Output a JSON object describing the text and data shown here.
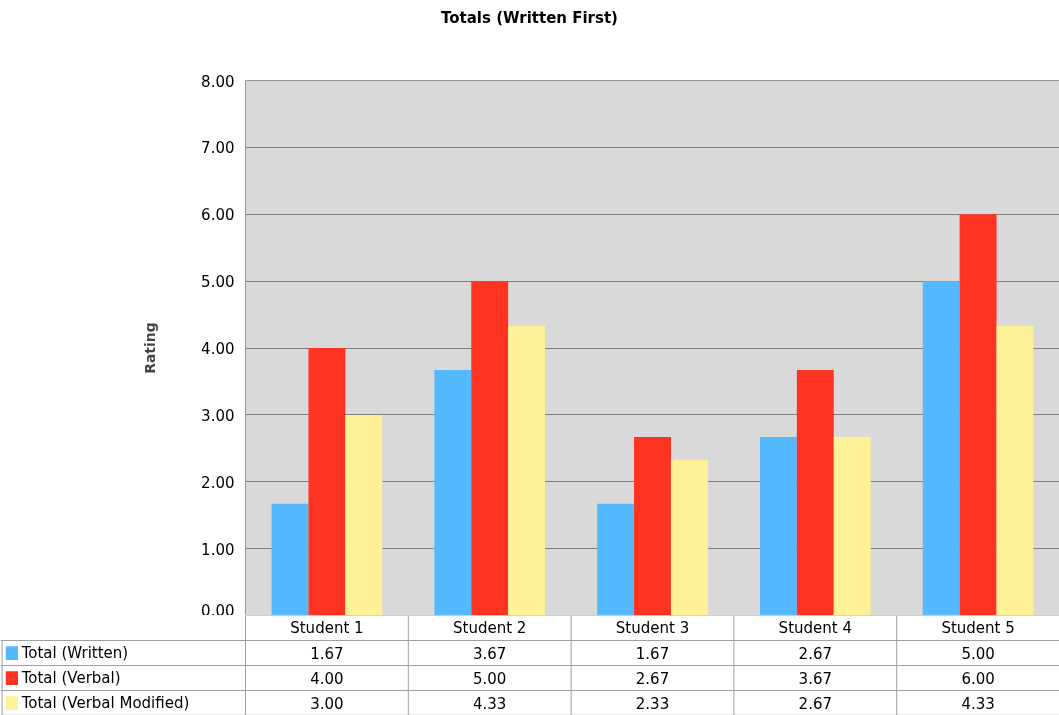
{
  "chart_data": {
    "type": "bar",
    "title": "Totals (Written First)",
    "ylabel": "Rating",
    "categories": [
      "Student 1",
      "Student 2",
      "Student 3",
      "Student 4",
      "Student 5"
    ],
    "series": [
      {
        "name": "Total (Written)",
        "color": "#55b9ff",
        "values": [
          1.67,
          3.67,
          1.67,
          2.67,
          5.0
        ],
        "value_labels": [
          "1.67",
          "3.67",
          "1.67",
          "2.67",
          "5.00"
        ]
      },
      {
        "name": "Total (Verbal)",
        "color": "#ff3322",
        "values": [
          4.0,
          5.0,
          2.67,
          3.67,
          6.0
        ],
        "value_labels": [
          "4.00",
          "5.00",
          "2.67",
          "3.67",
          "6.00"
        ]
      },
      {
        "name": "Total (Verbal Modified)",
        "color": "#fff296",
        "values": [
          3.0,
          4.33,
          2.33,
          2.67,
          4.33
        ],
        "value_labels": [
          "3.00",
          "4.33",
          "2.33",
          "2.67",
          "4.33"
        ]
      }
    ],
    "ylim": [
      0,
      8
    ],
    "yticks": [
      {
        "value": 0,
        "label": "0.00"
      },
      {
        "value": 1,
        "label": "1.00"
      },
      {
        "value": 2,
        "label": "2.00"
      },
      {
        "value": 3,
        "label": "3.00"
      },
      {
        "value": 4,
        "label": "4.00"
      },
      {
        "value": 5,
        "label": "5.00"
      },
      {
        "value": 6,
        "label": "6.00"
      },
      {
        "value": 7,
        "label": "7.00"
      },
      {
        "value": 8,
        "label": "8.00"
      }
    ],
    "grid": "y",
    "legend": "bottom left"
  }
}
